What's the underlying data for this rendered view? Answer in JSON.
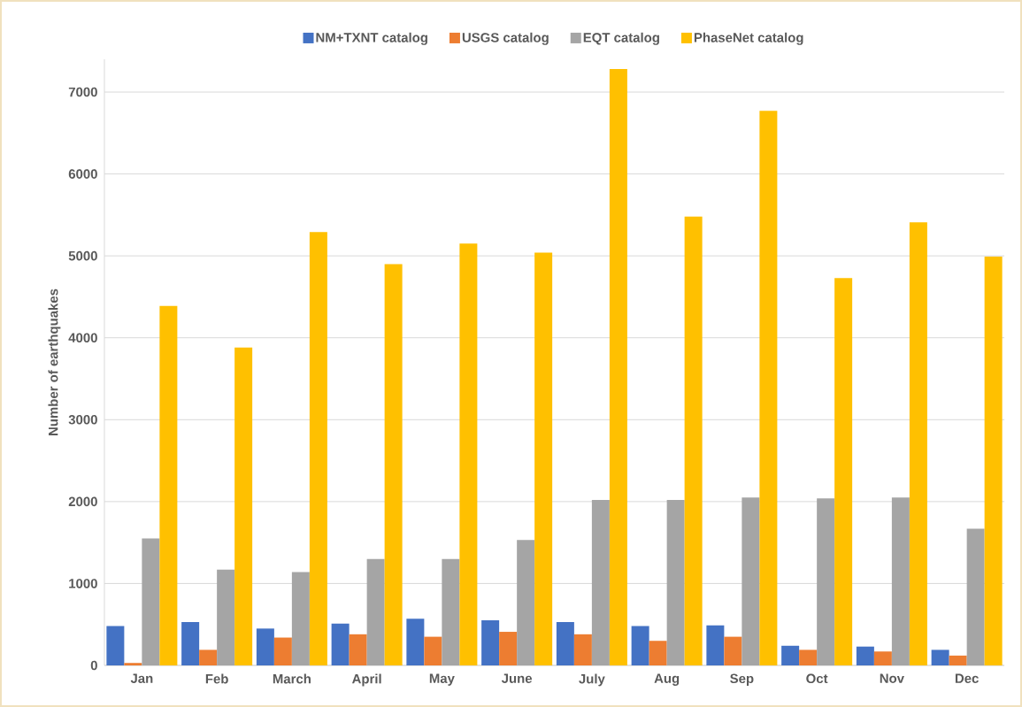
{
  "chart_data": {
    "type": "bar",
    "ylabel": "Number of earthquakes",
    "categories": [
      "Jan",
      "Feb",
      "March",
      "April",
      "May",
      "June",
      "July",
      "Aug",
      "Sep",
      "Oct",
      "Nov",
      "Dec"
    ],
    "series": [
      {
        "name": "NM+TXNT catalog",
        "color": "#4472c4",
        "values": [
          480,
          530,
          450,
          510,
          570,
          550,
          530,
          480,
          490,
          240,
          230,
          190
        ]
      },
      {
        "name": "USGS catalog",
        "color": "#ed7d31",
        "values": [
          30,
          190,
          340,
          380,
          350,
          410,
          380,
          300,
          350,
          190,
          170,
          120
        ]
      },
      {
        "name": "EQT catalog",
        "color": "#a5a5a5",
        "values": [
          1550,
          1170,
          1140,
          1300,
          1300,
          1530,
          2020,
          2020,
          2050,
          2040,
          2050,
          1670
        ]
      },
      {
        "name": "PhaseNet catalog",
        "color": "#ffc000",
        "values": [
          4390,
          3880,
          5290,
          4900,
          5150,
          5040,
          7280,
          5480,
          6770,
          4730,
          5410,
          4990
        ]
      }
    ],
    "ylim": [
      0,
      7400
    ],
    "yticks": [
      0,
      1000,
      2000,
      3000,
      4000,
      5000,
      6000,
      7000
    ],
    "grid": "y",
    "legend": "top"
  }
}
